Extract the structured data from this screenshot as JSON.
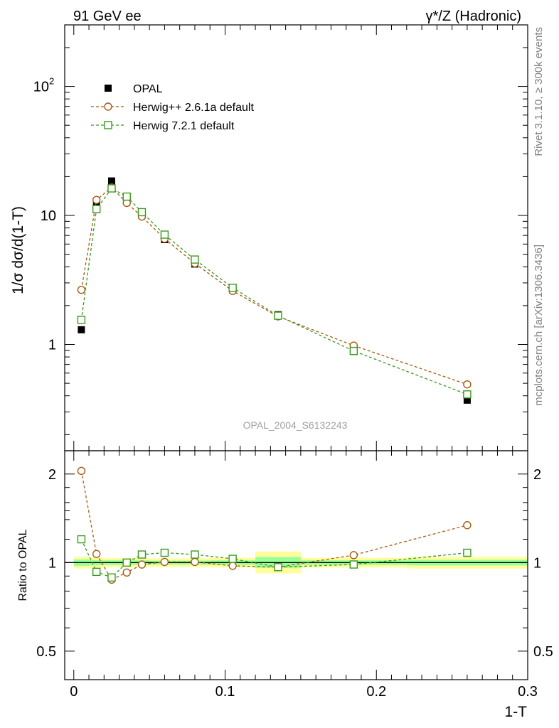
{
  "chart_data": [
    {
      "type": "scatter",
      "title_left": "91 GeV ee",
      "title_right": "γ*/Z (Hadronic)",
      "ylabel": "1/σ dσ/d(1-T)",
      "yscale": "log",
      "ylim": [
        0.15,
        300
      ],
      "xlim": [
        -0.006,
        0.3
      ],
      "yticks": [
        {
          "value": 1,
          "label": "1"
        },
        {
          "value": 10,
          "label": "10"
        },
        {
          "value": 100,
          "label": "10",
          "sup": "2"
        }
      ],
      "watermark": "OPAL_2004_S6132243",
      "legend": [
        {
          "name": "OPAL",
          "marker": "filled-square",
          "color": "#000000"
        },
        {
          "name": "Herwig++ 2.6.1a default",
          "marker": "open-circle",
          "color": "#a65a13"
        },
        {
          "name": "Herwig 7.2.1 default",
          "marker": "open-square",
          "color": "#3a9a1b"
        }
      ],
      "series": [
        {
          "name": "OPAL",
          "x": [
            0.005,
            0.015,
            0.025,
            0.035,
            0.045,
            0.06,
            0.08,
            0.105,
            0.135,
            0.185,
            0.26
          ],
          "values": [
            1.3,
            12.0,
            18.5,
            14.0,
            10.0,
            6.5,
            4.2,
            2.65,
            1.7,
            0.9,
            0.37
          ]
        },
        {
          "name": "Herwig++ 2.6.1a default",
          "x": [
            0.005,
            0.015,
            0.025,
            0.035,
            0.045,
            0.06,
            0.08,
            0.105,
            0.135,
            0.185,
            0.26
          ],
          "values": [
            2.65,
            13.2,
            16.5,
            12.5,
            9.8,
            6.6,
            4.25,
            2.6,
            1.65,
            0.98,
            0.49
          ]
        },
        {
          "name": "Herwig 7.2.1 default",
          "x": [
            0.005,
            0.015,
            0.025,
            0.035,
            0.045,
            0.06,
            0.08,
            0.105,
            0.135,
            0.185,
            0.26
          ],
          "values": [
            1.55,
            11.2,
            16.2,
            14.0,
            10.6,
            7.1,
            4.55,
            2.75,
            1.67,
            0.89,
            0.41
          ]
        }
      ]
    },
    {
      "type": "scatter",
      "ylabel": "Ratio to OPAL",
      "xlabel": "1-T",
      "yscale": "log",
      "ylim": [
        0.4,
        2.4
      ],
      "xlim": [
        -0.006,
        0.3
      ],
      "yticks": [
        {
          "value": 0.5,
          "label": "0.5"
        },
        {
          "value": 1,
          "label": "1"
        },
        {
          "value": 2,
          "label": "2"
        }
      ],
      "xticks": [
        {
          "value": 0,
          "label": "0"
        },
        {
          "value": 0.1,
          "label": "0.1"
        },
        {
          "value": 0.2,
          "label": "0.2"
        },
        {
          "value": 0.3,
          "label": "0.3"
        }
      ],
      "bands": [
        {
          "x0": 0.0,
          "x1": 0.01,
          "y0": 0.955,
          "y1": 1.045,
          "inner0": 0.975,
          "inner1": 1.025
        },
        {
          "x0": 0.01,
          "x1": 0.02,
          "y0": 0.96,
          "y1": 1.04,
          "inner0": 0.98,
          "inner1": 1.02
        },
        {
          "x0": 0.02,
          "x1": 0.03,
          "y0": 0.965,
          "y1": 1.035,
          "inner0": 0.982,
          "inner1": 1.018
        },
        {
          "x0": 0.03,
          "x1": 0.04,
          "y0": 0.965,
          "y1": 1.035,
          "inner0": 0.982,
          "inner1": 1.018
        },
        {
          "x0": 0.04,
          "x1": 0.05,
          "y0": 0.965,
          "y1": 1.035,
          "inner0": 0.982,
          "inner1": 1.018
        },
        {
          "x0": 0.05,
          "x1": 0.07,
          "y0": 0.967,
          "y1": 1.033,
          "inner0": 0.984,
          "inner1": 1.016
        },
        {
          "x0": 0.07,
          "x1": 0.09,
          "y0": 0.967,
          "y1": 1.033,
          "inner0": 0.984,
          "inner1": 1.016
        },
        {
          "x0": 0.09,
          "x1": 0.12,
          "y0": 0.962,
          "y1": 1.038,
          "inner0": 0.982,
          "inner1": 1.018
        },
        {
          "x0": 0.12,
          "x1": 0.15,
          "y0": 0.92,
          "y1": 1.09,
          "inner0": 0.96,
          "inner1": 1.045
        },
        {
          "x0": 0.15,
          "x1": 0.22,
          "y0": 0.962,
          "y1": 1.038,
          "inner0": 0.982,
          "inner1": 1.018
        },
        {
          "x0": 0.22,
          "x1": 0.3,
          "y0": 0.955,
          "y1": 1.045,
          "inner0": 0.978,
          "inner1": 1.022
        }
      ],
      "series": [
        {
          "name": "Herwig++ 2.6.1a default",
          "x": [
            0.005,
            0.015,
            0.025,
            0.035,
            0.045,
            0.06,
            0.08,
            0.105,
            0.135,
            0.185,
            0.26
          ],
          "values": [
            2.05,
            1.07,
            0.875,
            0.925,
            0.985,
            1.005,
            1.005,
            0.975,
            0.965,
            1.06,
            1.34
          ]
        },
        {
          "name": "Herwig 7.2.1 default",
          "x": [
            0.005,
            0.015,
            0.025,
            0.035,
            0.045,
            0.06,
            0.08,
            0.105,
            0.135,
            0.185,
            0.26
          ],
          "values": [
            1.2,
            0.93,
            0.89,
            1.0,
            1.065,
            1.08,
            1.065,
            1.03,
            0.965,
            0.985,
            1.08
          ]
        }
      ]
    }
  ],
  "side_labels": {
    "rivet": "Rivet 3.1.10, ≥ 300k events",
    "mcplots": "mcplots.cern.ch [arXiv:1306.3436]"
  }
}
